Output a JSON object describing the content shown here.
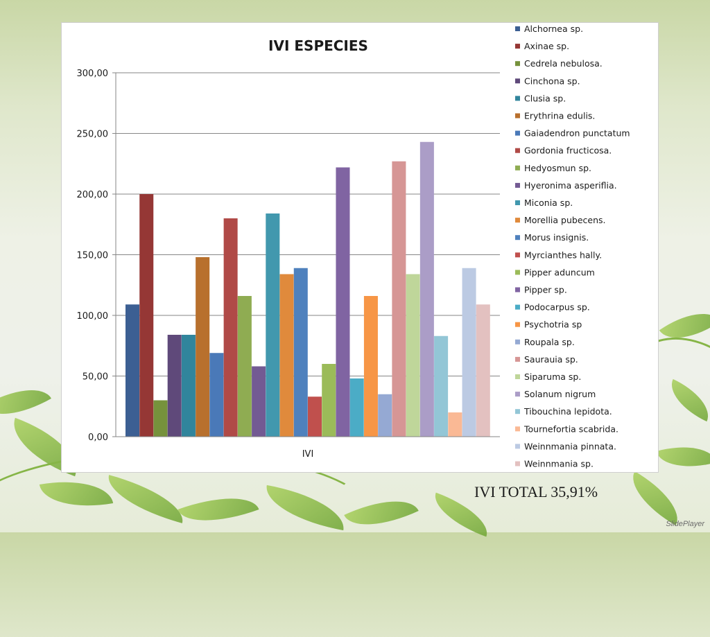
{
  "slide": {
    "footer_text": "IVI TOTAL 35,91%",
    "watermark": "SlidePlayer"
  },
  "chart_data": {
    "type": "bar",
    "title": "IVI ESPECIES",
    "categories": [
      "IVI"
    ],
    "ylim": [
      0,
      300
    ],
    "y_ticks": [
      "0,00",
      "50,00",
      "100,00",
      "150,00",
      "200,00",
      "250,00",
      "300,00"
    ],
    "grid": true,
    "legend_position": "right",
    "series": [
      {
        "name": "Alchornea sp.",
        "values": [
          109
        ],
        "color": "#3c5f93"
      },
      {
        "name": "Axinae sp.",
        "values": [
          200
        ],
        "color": "#953735"
      },
      {
        "name": "Cedrela nebulosa.",
        "values": [
          30
        ],
        "color": "#76923c"
      },
      {
        "name": "Cinchona sp.",
        "values": [
          84
        ],
        "color": "#5f497a"
      },
      {
        "name": "Clusia sp.",
        "values": [
          84
        ],
        "color": "#31859c"
      },
      {
        "name": "Erythrina edulis.",
        "values": [
          148
        ],
        "color": "#b8702d"
      },
      {
        "name": "Gaiadendron punctatum",
        "values": [
          69
        ],
        "color": "#4a79b8"
      },
      {
        "name": "Gordonia fructicosa.",
        "values": [
          180
        ],
        "color": "#b04a47"
      },
      {
        "name": "Hedyosmun sp.",
        "values": [
          116
        ],
        "color": "#8fac52"
      },
      {
        "name": "Hyeronima asperiflia.",
        "values": [
          58
        ],
        "color": "#735a93"
      },
      {
        "name": "Miconia sp.",
        "values": [
          184
        ],
        "color": "#4298ae"
      },
      {
        "name": "Morellia pubecens.",
        "values": [
          134
        ],
        "color": "#e08a3c"
      },
      {
        "name": "Morus insignis.",
        "values": [
          139
        ],
        "color": "#4f81bd"
      },
      {
        "name": "Myrcianthes hally.",
        "values": [
          33
        ],
        "color": "#c0504d"
      },
      {
        "name": "Pipper aduncum",
        "values": [
          60
        ],
        "color": "#9bbb59"
      },
      {
        "name": "Pipper sp.",
        "values": [
          222
        ],
        "color": "#8064a2"
      },
      {
        "name": "Podocarpus sp.",
        "values": [
          48
        ],
        "color": "#4bacc6"
      },
      {
        "name": "Psychotria sp",
        "values": [
          116
        ],
        "color": "#f79646"
      },
      {
        "name": "Roupala sp.",
        "values": [
          35
        ],
        "color": "#95a9d3"
      },
      {
        "name": "Saurauia sp.",
        "values": [
          227
        ],
        "color": "#d69695"
      },
      {
        "name": "Siparuma sp.",
        "values": [
          134
        ],
        "color": "#bfd69a"
      },
      {
        "name": "Solanum nigrum",
        "values": [
          243
        ],
        "color": "#ab9dc7"
      },
      {
        "name": "Tibouchina lepidota.",
        "values": [
          83
        ],
        "color": "#93c6d6"
      },
      {
        "name": "Tournefortia scabrida.",
        "values": [
          20
        ],
        "color": "#fab995"
      },
      {
        "name": "Weinnmania pinnata.",
        "values": [
          139
        ],
        "color": "#bccae3"
      },
      {
        "name": "Weinnmania sp.",
        "values": [
          109
        ],
        "color": "#e3c1c0"
      }
    ]
  }
}
